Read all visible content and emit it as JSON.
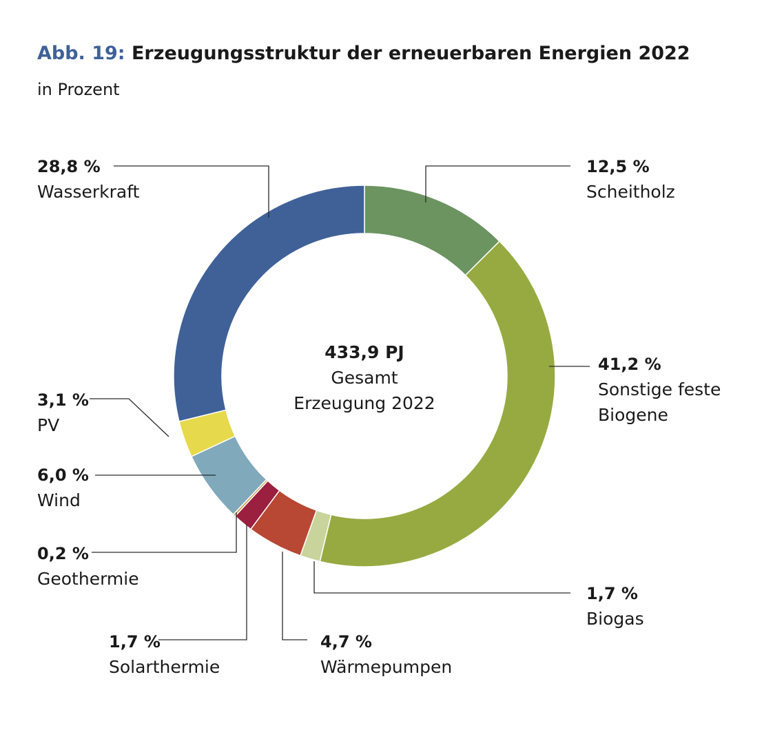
{
  "header": {
    "figure_label": "Abb. 19:",
    "title": "Erzeugungsstruktur der erneuerbaren Energien 2022",
    "subtitle": "in Prozent"
  },
  "center": {
    "total": "433,9 PJ",
    "line1": "Gesamt",
    "line2": "Erzeugung 2022"
  },
  "chart_data": {
    "type": "pie",
    "subtype": "donut",
    "title": "Erzeugungsstruktur der erneuerbaren Energien 2022",
    "unit": "Prozent",
    "slices": [
      {
        "name": "Scheitholz",
        "value": 12.5,
        "value_label": "12,5 %",
        "color": "#6b9461"
      },
      {
        "name": "Sonstige feste Biogene",
        "value": 41.2,
        "value_label": "41,2 %",
        "color": "#97aa41"
      },
      {
        "name": "Biogas",
        "value": 1.7,
        "value_label": "1,7 %",
        "color": "#c9d49c"
      },
      {
        "name": "Wärmepumpen",
        "value": 4.7,
        "value_label": "4,7 %",
        "color": "#b84733"
      },
      {
        "name": "Solarthermie",
        "value": 1.7,
        "value_label": "1,7 %",
        "color": "#9b1f3e"
      },
      {
        "name": "Geothermie",
        "value": 0.2,
        "value_label": "0,2 %",
        "color": "#c99b45"
      },
      {
        "name": "Wind",
        "value": 6.0,
        "value_label": "6,0 %",
        "color": "#80a9bc"
      },
      {
        "name": "PV",
        "value": 3.1,
        "value_label": "3,1 %",
        "color": "#e6d94c"
      },
      {
        "name": "Wasserkraft",
        "value": 28.8,
        "value_label": "28,8 %",
        "color": "#3f6198"
      }
    ]
  }
}
